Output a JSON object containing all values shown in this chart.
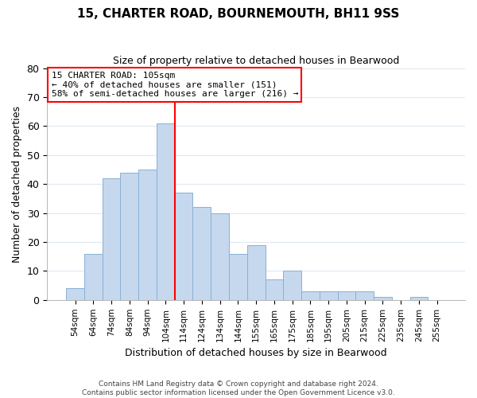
{
  "title": "15, CHARTER ROAD, BOURNEMOUTH, BH11 9SS",
  "subtitle": "Size of property relative to detached houses in Bearwood",
  "xlabel": "Distribution of detached houses by size in Bearwood",
  "ylabel": "Number of detached properties",
  "bar_labels": [
    "54sqm",
    "64sqm",
    "74sqm",
    "84sqm",
    "94sqm",
    "104sqm",
    "114sqm",
    "124sqm",
    "134sqm",
    "144sqm",
    "155sqm",
    "165sqm",
    "175sqm",
    "185sqm",
    "195sqm",
    "205sqm",
    "215sqm",
    "225sqm",
    "235sqm",
    "245sqm",
    "255sqm"
  ],
  "bar_heights": [
    4,
    16,
    42,
    44,
    45,
    61,
    37,
    32,
    30,
    16,
    19,
    7,
    10,
    3,
    3,
    3,
    3,
    1,
    0,
    1,
    0
  ],
  "bar_color": "#c5d8ee",
  "bar_edge_color": "#8ab0d4",
  "grid_color": "#e0e8f0",
  "vline_index": 6,
  "vline_color": "red",
  "annotation_line1": "15 CHARTER ROAD: 105sqm",
  "annotation_line2": "← 40% of detached houses are smaller (151)",
  "annotation_line3": "58% of semi-detached houses are larger (216) →",
  "annotation_box_color": "#ffffff",
  "annotation_box_edge": "red",
  "ylim": [
    0,
    80
  ],
  "yticks": [
    0,
    10,
    20,
    30,
    40,
    50,
    60,
    70,
    80
  ],
  "footer1": "Contains HM Land Registry data © Crown copyright and database right 2024.",
  "footer2": "Contains public sector information licensed under the Open Government Licence v3.0."
}
